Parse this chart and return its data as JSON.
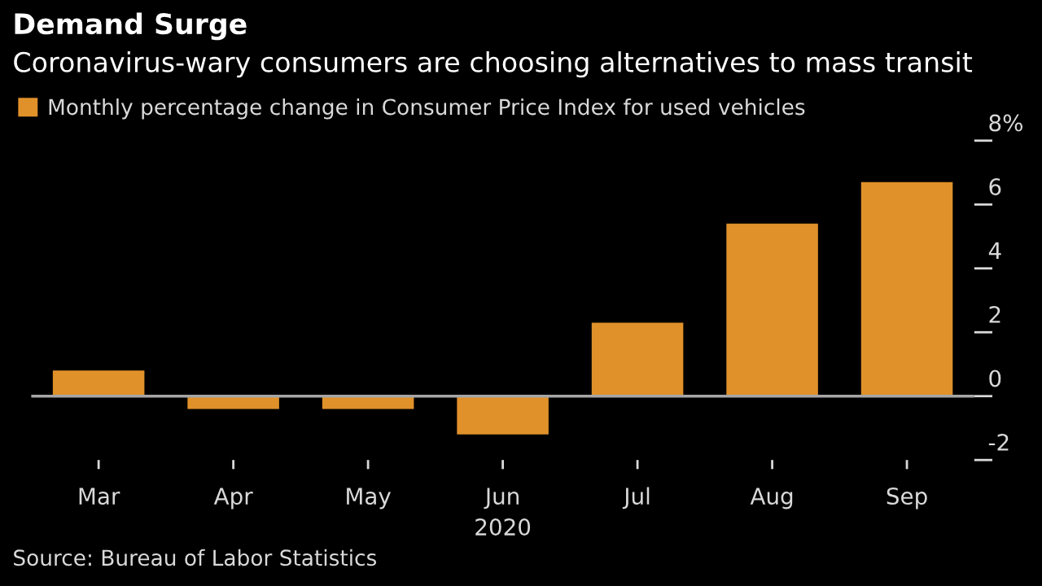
{
  "chart_data": {
    "type": "bar",
    "title": "Demand Surge",
    "subtitle": "Coronavirus-wary consumers are choosing alternatives to mass transit",
    "categories": [
      "Mar",
      "Apr",
      "May",
      "Jun",
      "Jul",
      "Aug",
      "Sep"
    ],
    "series": [
      {
        "name": "Monthly percentage change in Consumer Price Index for used vehicles",
        "color": "#e0912a",
        "values": [
          0.8,
          -0.4,
          -0.4,
          -1.2,
          2.3,
          5.4,
          6.7
        ]
      }
    ],
    "xlabel": "2020",
    "ylim": [
      -2,
      8
    ],
    "yticks": [
      -2,
      0,
      2,
      4,
      6,
      {
        "value": 8,
        "label": "8%"
      }
    ],
    "ref_lines": [
      {
        "axis": "y",
        "value": 0,
        "color": "#a6a6a6"
      }
    ],
    "annotations": [
      "Source: Bureau of Labor Statistics"
    ],
    "legend": "top left",
    "grid": false
  }
}
